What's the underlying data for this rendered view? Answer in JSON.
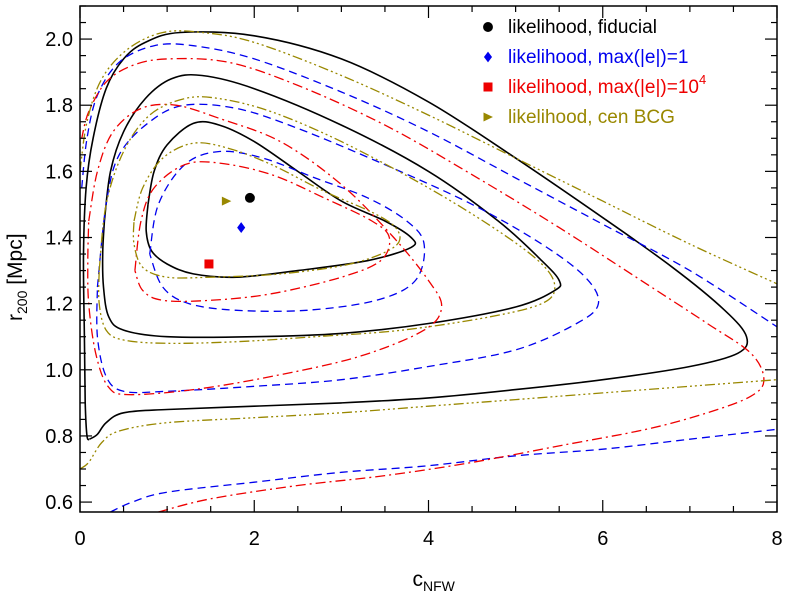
{
  "chart_data": {
    "type": "line",
    "title": "",
    "xlabel": "c",
    "xlabel_sub": "NFW",
    "ylabel": "r",
    "ylabel_sub": "200",
    "ylabel_unit": " [Mpc]",
    "xlim": [
      0,
      8
    ],
    "ylim": [
      0.57,
      2.1
    ],
    "grid": false,
    "legend_position": "top-right",
    "x_ticks": [
      "0",
      "2",
      "4",
      "6",
      "8"
    ],
    "y_ticks": [
      "0.6",
      "0.8",
      "1.0",
      "1.2",
      "1.4",
      "1.6",
      "1.8",
      "2.0"
    ],
    "series": [
      {
        "name": "likelihood, fiducial",
        "name_sup": "",
        "color": "#000000",
        "dash": "solid",
        "marker": "circle",
        "best_fit": [
          1.95,
          1.52
        ],
        "contours": [
          [
            [
              0.78,
              1.5
            ],
            [
              0.85,
              1.6
            ],
            [
              1.0,
              1.68
            ],
            [
              1.3,
              1.745
            ],
            [
              1.6,
              1.74
            ],
            [
              2.0,
              1.69
            ],
            [
              2.5,
              1.6
            ],
            [
              3.0,
              1.51
            ],
            [
              3.5,
              1.45
            ],
            [
              3.8,
              1.4
            ],
            [
              3.8,
              1.37
            ],
            [
              3.3,
              1.33
            ],
            [
              2.5,
              1.3
            ],
            [
              1.8,
              1.28
            ],
            [
              1.3,
              1.29
            ],
            [
              1.0,
              1.32
            ],
            [
              0.82,
              1.36
            ],
            [
              0.76,
              1.42
            ],
            [
              0.78,
              1.5
            ]
          ],
          [
            [
              0.28,
              1.45
            ],
            [
              0.35,
              1.6
            ],
            [
              0.5,
              1.72
            ],
            [
              0.75,
              1.82
            ],
            [
              1.05,
              1.88
            ],
            [
              1.4,
              1.89
            ],
            [
              2.0,
              1.85
            ],
            [
              3.0,
              1.74
            ],
            [
              4.0,
              1.6
            ],
            [
              4.8,
              1.45
            ],
            [
              5.3,
              1.33
            ],
            [
              5.5,
              1.27
            ],
            [
              5.45,
              1.24
            ],
            [
              5.0,
              1.19
            ],
            [
              4.0,
              1.14
            ],
            [
              3.0,
              1.11
            ],
            [
              2.0,
              1.1
            ],
            [
              1.0,
              1.1
            ],
            [
              0.5,
              1.12
            ],
            [
              0.33,
              1.16
            ],
            [
              0.27,
              1.25
            ],
            [
              0.26,
              1.35
            ],
            [
              0.28,
              1.45
            ]
          ],
          [
            [
              0.11,
              0.79
            ],
            [
              0.2,
              0.805
            ],
            [
              0.3,
              0.84
            ],
            [
              0.5,
              0.87
            ],
            [
              1.0,
              0.88
            ],
            [
              2.0,
              0.89
            ],
            [
              3.0,
              0.9
            ],
            [
              4.0,
              0.915
            ],
            [
              5.0,
              0.94
            ],
            [
              6.0,
              0.97
            ],
            [
              7.0,
              1.01
            ],
            [
              7.55,
              1.05
            ],
            [
              7.65,
              1.1
            ],
            [
              7.4,
              1.18
            ],
            [
              6.8,
              1.31
            ],
            [
              6.0,
              1.46
            ],
            [
              5.0,
              1.64
            ],
            [
              4.0,
              1.81
            ],
            [
              3.0,
              1.94
            ],
            [
              2.0,
              2.01
            ],
            [
              1.15,
              2.02
            ],
            [
              0.75,
              1.99
            ],
            [
              0.5,
              1.94
            ],
            [
              0.3,
              1.85
            ],
            [
              0.15,
              1.7
            ],
            [
              0.07,
              1.55
            ],
            [
              0.04,
              1.35
            ],
            [
              0.05,
              1.1
            ],
            [
              0.06,
              0.9
            ],
            [
              0.08,
              0.8
            ],
            [
              0.11,
              0.79
            ]
          ]
        ]
      },
      {
        "name": "likelihood, max(|e|)=1",
        "name_sup": "",
        "color": "#0000ee",
        "dash": "8,5",
        "marker": "diamond",
        "best_fit": [
          1.85,
          1.43
        ],
        "contours": [
          [
            [
              0.8,
              1.35
            ],
            [
              0.9,
              1.5
            ],
            [
              1.2,
              1.62
            ],
            [
              1.6,
              1.66
            ],
            [
              2.1,
              1.64
            ],
            [
              2.7,
              1.58
            ],
            [
              3.3,
              1.52
            ],
            [
              3.75,
              1.45
            ],
            [
              3.95,
              1.38
            ],
            [
              3.85,
              1.27
            ],
            [
              3.4,
              1.21
            ],
            [
              2.6,
              1.18
            ],
            [
              1.8,
              1.18
            ],
            [
              1.25,
              1.2
            ],
            [
              0.95,
              1.25
            ],
            [
              0.8,
              1.35
            ]
          ],
          [
            [
              0.2,
              1.25
            ],
            [
              0.3,
              1.5
            ],
            [
              0.45,
              1.65
            ],
            [
              0.8,
              1.75
            ],
            [
              1.2,
              1.8
            ],
            [
              1.8,
              1.79
            ],
            [
              2.5,
              1.73
            ],
            [
              3.5,
              1.62
            ],
            [
              4.5,
              1.5
            ],
            [
              5.3,
              1.38
            ],
            [
              5.8,
              1.28
            ],
            [
              5.95,
              1.2
            ],
            [
              5.7,
              1.14
            ],
            [
              5.0,
              1.06
            ],
            [
              4.0,
              1.01
            ],
            [
              3.0,
              0.97
            ],
            [
              2.0,
              0.95
            ],
            [
              1.0,
              0.935
            ],
            [
              0.5,
              0.935
            ],
            [
              0.3,
              0.98
            ],
            [
              0.2,
              1.1
            ],
            [
              0.2,
              1.25
            ]
          ],
          [
            [
              0.35,
              0.57
            ],
            [
              0.6,
              0.6
            ],
            [
              1.0,
              0.63
            ],
            [
              2.0,
              0.66
            ],
            [
              3.0,
              0.69
            ],
            [
              4.0,
              0.71
            ],
            [
              5.0,
              0.74
            ],
            [
              6.0,
              0.76
            ],
            [
              7.0,
              0.79
            ],
            [
              8.0,
              0.82
            ]
          ],
          [
            [
              0.02,
              1.55
            ],
            [
              0.08,
              1.7
            ],
            [
              0.2,
              1.83
            ],
            [
              0.45,
              1.93
            ],
            [
              0.85,
              1.98
            ],
            [
              1.3,
              1.98
            ],
            [
              2.0,
              1.94
            ],
            [
              3.0,
              1.84
            ],
            [
              4.0,
              1.72
            ],
            [
              5.0,
              1.58
            ],
            [
              6.0,
              1.44
            ],
            [
              7.0,
              1.3
            ],
            [
              8.0,
              1.13
            ]
          ]
        ]
      },
      {
        "name": "likelihood, max(|e|)=10",
        "name_sup": "4",
        "color": "#ee0000",
        "dash": "10,4,2,4",
        "marker": "square",
        "best_fit": [
          1.48,
          1.32
        ],
        "contours": [
          [
            [
              0.63,
              1.3
            ],
            [
              0.7,
              1.45
            ],
            [
              0.85,
              1.55
            ],
            [
              1.2,
              1.62
            ],
            [
              1.6,
              1.625
            ],
            [
              2.2,
              1.59
            ],
            [
              2.8,
              1.52
            ],
            [
              3.35,
              1.45
            ],
            [
              3.55,
              1.4
            ],
            [
              3.45,
              1.33
            ],
            [
              3.0,
              1.28
            ],
            [
              2.2,
              1.23
            ],
            [
              1.5,
              1.21
            ],
            [
              0.95,
              1.21
            ],
            [
              0.72,
              1.24
            ],
            [
              0.63,
              1.3
            ]
          ],
          [
            [
              0.1,
              1.45
            ],
            [
              0.2,
              1.6
            ],
            [
              0.38,
              1.72
            ],
            [
              0.7,
              1.79
            ],
            [
              1.1,
              1.8
            ],
            [
              1.6,
              1.76
            ],
            [
              2.3,
              1.69
            ],
            [
              3.0,
              1.56
            ],
            [
              3.6,
              1.4
            ],
            [
              4.0,
              1.27
            ],
            [
              4.15,
              1.19
            ],
            [
              3.95,
              1.12
            ],
            [
              3.2,
              1.04
            ],
            [
              2.2,
              0.98
            ],
            [
              1.3,
              0.94
            ],
            [
              0.55,
              0.925
            ],
            [
              0.32,
              0.95
            ],
            [
              0.18,
              1.05
            ],
            [
              0.1,
              1.2
            ],
            [
              0.09,
              1.33
            ],
            [
              0.1,
              1.45
            ]
          ],
          [
            [
              0.9,
              0.57
            ],
            [
              1.5,
              0.61
            ],
            [
              2.5,
              0.65
            ],
            [
              3.5,
              0.68
            ],
            [
              4.5,
              0.72
            ],
            [
              5.5,
              0.77
            ],
            [
              6.5,
              0.82
            ],
            [
              7.2,
              0.87
            ],
            [
              7.7,
              0.92
            ],
            [
              7.85,
              0.97
            ],
            [
              7.7,
              1.05
            ],
            [
              7.2,
              1.14
            ],
            [
              6.5,
              1.26
            ],
            [
              5.5,
              1.43
            ],
            [
              4.5,
              1.59
            ],
            [
              3.5,
              1.74
            ],
            [
              2.5,
              1.86
            ],
            [
              1.7,
              1.93
            ],
            [
              1.0,
              1.94
            ],
            [
              0.6,
              1.92
            ],
            [
              0.3,
              1.87
            ],
            [
              0.1,
              1.78
            ],
            [
              0.02,
              1.7
            ]
          ]
        ]
      },
      {
        "name": "likelihood, cen BCG",
        "name_sup": "",
        "color": "#998800",
        "dash": "10,3,2,3,2,3,2,3",
        "marker": "triangle-right",
        "best_fit": [
          1.68,
          1.51
        ],
        "contours": [
          [
            [
              0.62,
              1.45
            ],
            [
              0.72,
              1.55
            ],
            [
              0.95,
              1.64
            ],
            [
              1.3,
              1.685
            ],
            [
              1.7,
              1.67
            ],
            [
              2.2,
              1.62
            ],
            [
              2.8,
              1.54
            ],
            [
              3.4,
              1.47
            ],
            [
              3.65,
              1.42
            ],
            [
              3.6,
              1.37
            ],
            [
              3.1,
              1.32
            ],
            [
              2.3,
              1.29
            ],
            [
              1.5,
              1.28
            ],
            [
              1.0,
              1.28
            ],
            [
              0.72,
              1.31
            ],
            [
              0.62,
              1.38
            ],
            [
              0.62,
              1.45
            ]
          ],
          [
            [
              0.22,
              1.3
            ],
            [
              0.3,
              1.5
            ],
            [
              0.5,
              1.66
            ],
            [
              0.8,
              1.77
            ],
            [
              1.2,
              1.82
            ],
            [
              1.6,
              1.82
            ],
            [
              2.2,
              1.78
            ],
            [
              3.0,
              1.69
            ],
            [
              4.0,
              1.55
            ],
            [
              4.8,
              1.42
            ],
            [
              5.3,
              1.32
            ],
            [
              5.45,
              1.25
            ],
            [
              5.3,
              1.2
            ],
            [
              4.7,
              1.16
            ],
            [
              3.7,
              1.12
            ],
            [
              2.7,
              1.1
            ],
            [
              1.8,
              1.085
            ],
            [
              1.0,
              1.08
            ],
            [
              0.5,
              1.09
            ],
            [
              0.3,
              1.12
            ],
            [
              0.22,
              1.2
            ],
            [
              0.22,
              1.3
            ]
          ],
          [
            [
              0.0,
              0.7
            ],
            [
              0.1,
              0.72
            ],
            [
              0.25,
              0.78
            ],
            [
              0.45,
              0.815
            ],
            [
              1.0,
              0.84
            ],
            [
              2.0,
              0.855
            ],
            [
              3.0,
              0.87
            ],
            [
              4.0,
              0.89
            ],
            [
              5.0,
              0.91
            ],
            [
              6.0,
              0.93
            ],
            [
              7.0,
              0.95
            ],
            [
              8.0,
              0.97
            ]
          ],
          [
            [
              0.0,
              1.6
            ],
            [
              0.08,
              1.75
            ],
            [
              0.25,
              1.88
            ],
            [
              0.55,
              1.97
            ],
            [
              0.95,
              2.02
            ],
            [
              1.4,
              2.02
            ],
            [
              2.0,
              1.99
            ],
            [
              3.0,
              1.89
            ],
            [
              4.0,
              1.77
            ],
            [
              5.0,
              1.64
            ],
            [
              6.0,
              1.51
            ],
            [
              7.0,
              1.38
            ],
            [
              8.0,
              1.26
            ]
          ]
        ]
      }
    ]
  }
}
